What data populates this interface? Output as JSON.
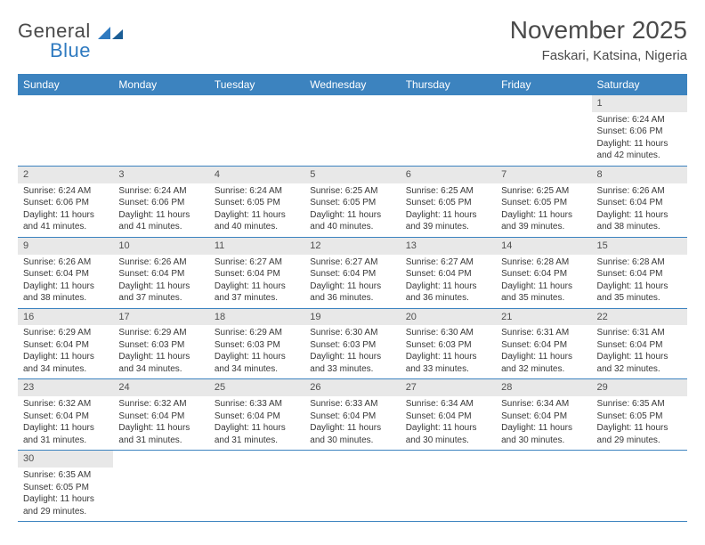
{
  "logo": {
    "part1": "General",
    "part2": "Blue"
  },
  "title": "November 2025",
  "location": "Faskari, Katsina, Nigeria",
  "colors": {
    "header_bg": "#3c83bf",
    "header_text": "#ffffff",
    "daynum_bg": "#e8e8e8",
    "rule": "#3c83bf",
    "logo_blue": "#2f7ac0",
    "text": "#383838"
  },
  "weekdays": [
    "Sunday",
    "Monday",
    "Tuesday",
    "Wednesday",
    "Thursday",
    "Friday",
    "Saturday"
  ],
  "weeks": [
    [
      null,
      null,
      null,
      null,
      null,
      null,
      {
        "n": "1",
        "sunrise": "Sunrise: 6:24 AM",
        "sunset": "Sunset: 6:06 PM",
        "daylight": "Daylight: 11 hours and 42 minutes."
      }
    ],
    [
      {
        "n": "2",
        "sunrise": "Sunrise: 6:24 AM",
        "sunset": "Sunset: 6:06 PM",
        "daylight": "Daylight: 11 hours and 41 minutes."
      },
      {
        "n": "3",
        "sunrise": "Sunrise: 6:24 AM",
        "sunset": "Sunset: 6:06 PM",
        "daylight": "Daylight: 11 hours and 41 minutes."
      },
      {
        "n": "4",
        "sunrise": "Sunrise: 6:24 AM",
        "sunset": "Sunset: 6:05 PM",
        "daylight": "Daylight: 11 hours and 40 minutes."
      },
      {
        "n": "5",
        "sunrise": "Sunrise: 6:25 AM",
        "sunset": "Sunset: 6:05 PM",
        "daylight": "Daylight: 11 hours and 40 minutes."
      },
      {
        "n": "6",
        "sunrise": "Sunrise: 6:25 AM",
        "sunset": "Sunset: 6:05 PM",
        "daylight": "Daylight: 11 hours and 39 minutes."
      },
      {
        "n": "7",
        "sunrise": "Sunrise: 6:25 AM",
        "sunset": "Sunset: 6:05 PM",
        "daylight": "Daylight: 11 hours and 39 minutes."
      },
      {
        "n": "8",
        "sunrise": "Sunrise: 6:26 AM",
        "sunset": "Sunset: 6:04 PM",
        "daylight": "Daylight: 11 hours and 38 minutes."
      }
    ],
    [
      {
        "n": "9",
        "sunrise": "Sunrise: 6:26 AM",
        "sunset": "Sunset: 6:04 PM",
        "daylight": "Daylight: 11 hours and 38 minutes."
      },
      {
        "n": "10",
        "sunrise": "Sunrise: 6:26 AM",
        "sunset": "Sunset: 6:04 PM",
        "daylight": "Daylight: 11 hours and 37 minutes."
      },
      {
        "n": "11",
        "sunrise": "Sunrise: 6:27 AM",
        "sunset": "Sunset: 6:04 PM",
        "daylight": "Daylight: 11 hours and 37 minutes."
      },
      {
        "n": "12",
        "sunrise": "Sunrise: 6:27 AM",
        "sunset": "Sunset: 6:04 PM",
        "daylight": "Daylight: 11 hours and 36 minutes."
      },
      {
        "n": "13",
        "sunrise": "Sunrise: 6:27 AM",
        "sunset": "Sunset: 6:04 PM",
        "daylight": "Daylight: 11 hours and 36 minutes."
      },
      {
        "n": "14",
        "sunrise": "Sunrise: 6:28 AM",
        "sunset": "Sunset: 6:04 PM",
        "daylight": "Daylight: 11 hours and 35 minutes."
      },
      {
        "n": "15",
        "sunrise": "Sunrise: 6:28 AM",
        "sunset": "Sunset: 6:04 PM",
        "daylight": "Daylight: 11 hours and 35 minutes."
      }
    ],
    [
      {
        "n": "16",
        "sunrise": "Sunrise: 6:29 AM",
        "sunset": "Sunset: 6:04 PM",
        "daylight": "Daylight: 11 hours and 34 minutes."
      },
      {
        "n": "17",
        "sunrise": "Sunrise: 6:29 AM",
        "sunset": "Sunset: 6:03 PM",
        "daylight": "Daylight: 11 hours and 34 minutes."
      },
      {
        "n": "18",
        "sunrise": "Sunrise: 6:29 AM",
        "sunset": "Sunset: 6:03 PM",
        "daylight": "Daylight: 11 hours and 34 minutes."
      },
      {
        "n": "19",
        "sunrise": "Sunrise: 6:30 AM",
        "sunset": "Sunset: 6:03 PM",
        "daylight": "Daylight: 11 hours and 33 minutes."
      },
      {
        "n": "20",
        "sunrise": "Sunrise: 6:30 AM",
        "sunset": "Sunset: 6:03 PM",
        "daylight": "Daylight: 11 hours and 33 minutes."
      },
      {
        "n": "21",
        "sunrise": "Sunrise: 6:31 AM",
        "sunset": "Sunset: 6:04 PM",
        "daylight": "Daylight: 11 hours and 32 minutes."
      },
      {
        "n": "22",
        "sunrise": "Sunrise: 6:31 AM",
        "sunset": "Sunset: 6:04 PM",
        "daylight": "Daylight: 11 hours and 32 minutes."
      }
    ],
    [
      {
        "n": "23",
        "sunrise": "Sunrise: 6:32 AM",
        "sunset": "Sunset: 6:04 PM",
        "daylight": "Daylight: 11 hours and 31 minutes."
      },
      {
        "n": "24",
        "sunrise": "Sunrise: 6:32 AM",
        "sunset": "Sunset: 6:04 PM",
        "daylight": "Daylight: 11 hours and 31 minutes."
      },
      {
        "n": "25",
        "sunrise": "Sunrise: 6:33 AM",
        "sunset": "Sunset: 6:04 PM",
        "daylight": "Daylight: 11 hours and 31 minutes."
      },
      {
        "n": "26",
        "sunrise": "Sunrise: 6:33 AM",
        "sunset": "Sunset: 6:04 PM",
        "daylight": "Daylight: 11 hours and 30 minutes."
      },
      {
        "n": "27",
        "sunrise": "Sunrise: 6:34 AM",
        "sunset": "Sunset: 6:04 PM",
        "daylight": "Daylight: 11 hours and 30 minutes."
      },
      {
        "n": "28",
        "sunrise": "Sunrise: 6:34 AM",
        "sunset": "Sunset: 6:04 PM",
        "daylight": "Daylight: 11 hours and 30 minutes."
      },
      {
        "n": "29",
        "sunrise": "Sunrise: 6:35 AM",
        "sunset": "Sunset: 6:05 PM",
        "daylight": "Daylight: 11 hours and 29 minutes."
      }
    ],
    [
      {
        "n": "30",
        "sunrise": "Sunrise: 6:35 AM",
        "sunset": "Sunset: 6:05 PM",
        "daylight": "Daylight: 11 hours and 29 minutes."
      },
      null,
      null,
      null,
      null,
      null,
      null
    ]
  ]
}
